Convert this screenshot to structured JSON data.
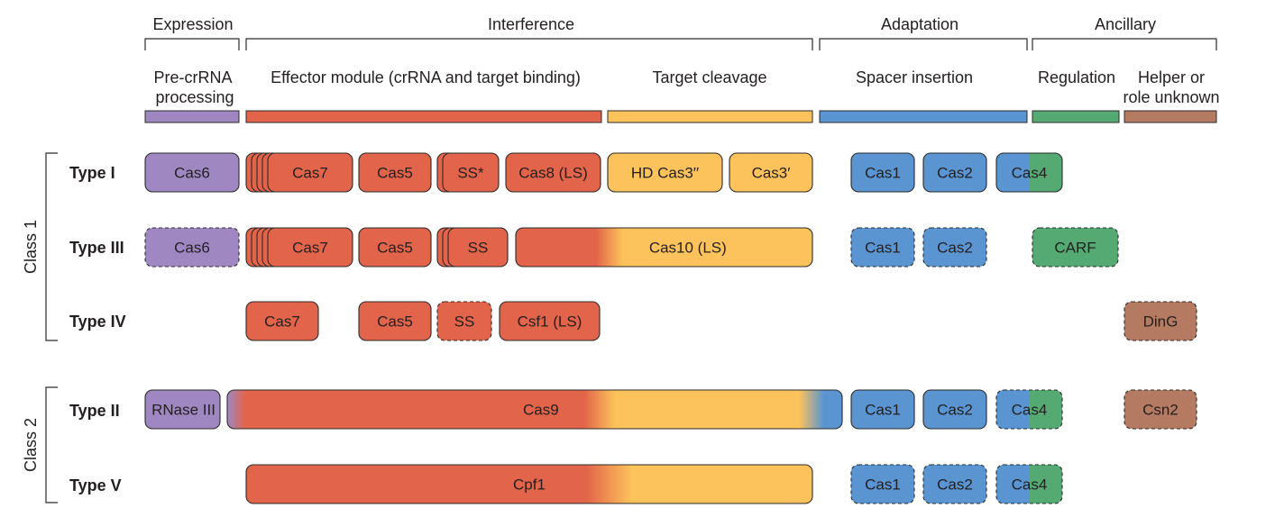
{
  "colors": {
    "purple": "#9f88c2",
    "red": "#e2644a",
    "yellow": "#fcc25b",
    "blue": "#5a95d1",
    "green": "#55aa73",
    "brown": "#b57b62"
  },
  "categories": [
    {
      "id": "expression",
      "label": "Expression"
    },
    {
      "id": "interference",
      "label": "Interference"
    },
    {
      "id": "adaptation",
      "label": "Adaptation"
    },
    {
      "id": "ancillary",
      "label": "Ancillary"
    }
  ],
  "subcategories": [
    {
      "id": "precrrna",
      "lines": [
        "Pre-crRNA",
        "processing"
      ],
      "color": "purple"
    },
    {
      "id": "effector",
      "lines": [
        "Effector module (crRNA and target binding)"
      ],
      "color": "red"
    },
    {
      "id": "cleavage",
      "lines": [
        "Target cleavage"
      ],
      "color": "yellow"
    },
    {
      "id": "spacer",
      "lines": [
        "Spacer insertion"
      ],
      "color": "blue"
    },
    {
      "id": "regulation",
      "lines": [
        "Regulation"
      ],
      "color": "green"
    },
    {
      "id": "helper",
      "lines": [
        "Helper or",
        "role unknown"
      ],
      "color": "brown"
    }
  ],
  "classes": [
    {
      "id": "class1",
      "label": "Class 1"
    },
    {
      "id": "class2",
      "label": "Class 2"
    }
  ],
  "rows": [
    {
      "id": "type-i",
      "label": "Type I",
      "class": "class1"
    },
    {
      "id": "type-iii",
      "label": "Type III",
      "class": "class1"
    },
    {
      "id": "type-iv",
      "label": "Type IV",
      "class": "class1"
    },
    {
      "id": "type-ii",
      "label": "Type II",
      "class": "class2"
    },
    {
      "id": "type-v",
      "label": "Type V",
      "class": "class2"
    }
  ],
  "proteins": [
    {
      "row": "type-i",
      "name": "cas6-type-i",
      "label": "Cas6",
      "fill": "purple",
      "dashed": false
    },
    {
      "row": "type-i",
      "name": "cas7-type-i",
      "label": "Cas7",
      "fill": "red",
      "dashed": false,
      "stack": 5
    },
    {
      "row": "type-i",
      "name": "cas5-type-i",
      "label": "Cas5",
      "fill": "red",
      "dashed": false
    },
    {
      "row": "type-i",
      "name": "ss-type-i",
      "label": "SS*",
      "fill": "red",
      "dashed": false,
      "stack": 2
    },
    {
      "row": "type-i",
      "name": "cas8-type-i",
      "label": "Cas8 (LS)",
      "fill": "red",
      "dashed": false
    },
    {
      "row": "type-i",
      "name": "hd-cas3-type-i",
      "label": "HD Cas3′′",
      "fill": "yellow",
      "dashed": false
    },
    {
      "row": "type-i",
      "name": "cas3-type-i",
      "label": "Cas3′",
      "fill": "yellow",
      "dashed": false
    },
    {
      "row": "type-i",
      "name": "cas1-type-i",
      "label": "Cas1",
      "fill": "blue",
      "dashed": false
    },
    {
      "row": "type-i",
      "name": "cas2-type-i",
      "label": "Cas2",
      "fill": "blue",
      "dashed": false
    },
    {
      "row": "type-i",
      "name": "cas4-type-i",
      "label": "Cas4",
      "fill": "blue-green",
      "dashed": false
    },
    {
      "row": "type-iii",
      "name": "cas6-type-iii",
      "label": "Cas6",
      "fill": "purple",
      "dashed": true
    },
    {
      "row": "type-iii",
      "name": "cas7-type-iii",
      "label": "Cas7",
      "fill": "red",
      "dashed": false,
      "stack": 5
    },
    {
      "row": "type-iii",
      "name": "cas5-type-iii",
      "label": "Cas5",
      "fill": "red",
      "dashed": false
    },
    {
      "row": "type-iii",
      "name": "ss-type-iii",
      "label": "SS",
      "fill": "red",
      "dashed": false,
      "stack": 3
    },
    {
      "row": "type-iii",
      "name": "cas10-type-iii",
      "label": "Cas10 (LS)",
      "fill": "red-yellow",
      "dashed": false
    },
    {
      "row": "type-iii",
      "name": "cas1-type-iii",
      "label": "Cas1",
      "fill": "blue",
      "dashed": true
    },
    {
      "row": "type-iii",
      "name": "cas2-type-iii",
      "label": "Cas2",
      "fill": "blue",
      "dashed": true
    },
    {
      "row": "type-iii",
      "name": "carf-type-iii",
      "label": "CARF",
      "fill": "green",
      "dashed": true
    },
    {
      "row": "type-iv",
      "name": "cas7-type-iv",
      "label": "Cas7",
      "fill": "red",
      "dashed": false
    },
    {
      "row": "type-iv",
      "name": "cas5-type-iv",
      "label": "Cas5",
      "fill": "red",
      "dashed": false
    },
    {
      "row": "type-iv",
      "name": "ss-type-iv",
      "label": "SS",
      "fill": "red",
      "dashed": true
    },
    {
      "row": "type-iv",
      "name": "csf1-type-iv",
      "label": "Csf1 (LS)",
      "fill": "red",
      "dashed": false
    },
    {
      "row": "type-iv",
      "name": "ding-type-iv",
      "label": "DinG",
      "fill": "brown",
      "dashed": true
    },
    {
      "row": "type-ii",
      "name": "rnase-iii-type-ii",
      "label": "RNase III",
      "fill": "purple",
      "dashed": false
    },
    {
      "row": "type-ii",
      "name": "cas9-type-ii",
      "label": "Cas9",
      "fill": "cas9",
      "dashed": false
    },
    {
      "row": "type-ii",
      "name": "cas1-type-ii",
      "label": "Cas1",
      "fill": "blue",
      "dashed": false
    },
    {
      "row": "type-ii",
      "name": "cas2-type-ii",
      "label": "Cas2",
      "fill": "blue",
      "dashed": false
    },
    {
      "row": "type-ii",
      "name": "cas4-type-ii",
      "label": "Cas4",
      "fill": "blue-green",
      "dashed": true
    },
    {
      "row": "type-ii",
      "name": "csn2-type-ii",
      "label": "Csn2",
      "fill": "brown",
      "dashed": true
    },
    {
      "row": "type-v",
      "name": "cpf1-type-v",
      "label": "Cpf1",
      "fill": "red-yellow",
      "dashed": false
    },
    {
      "row": "type-v",
      "name": "cas1-type-v",
      "label": "Cas1",
      "fill": "blue",
      "dashed": true
    },
    {
      "row": "type-v",
      "name": "cas2-type-v",
      "label": "Cas2",
      "fill": "blue",
      "dashed": true
    },
    {
      "row": "type-v",
      "name": "cas4-type-v",
      "label": "Cas4",
      "fill": "blue-green",
      "dashed": true
    }
  ]
}
